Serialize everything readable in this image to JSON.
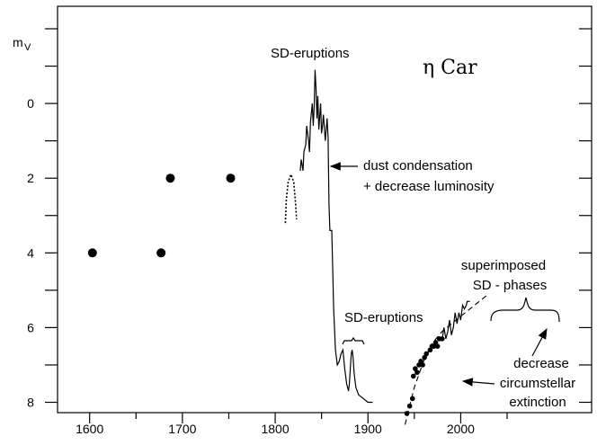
{
  "chart_data": {
    "type": "line",
    "title": "η Car",
    "ylabel_main": "m",
    "ylabel_sub": "V",
    "xlabel": "",
    "xlim": [
      1550,
      2050
    ],
    "ylim": [
      8.5,
      -2.5
    ],
    "y_inverted": true,
    "grid": false,
    "x_ticks": [
      1600,
      1700,
      1800,
      1900,
      2000
    ],
    "y_ticks": [
      0,
      2,
      4,
      6,
      8
    ],
    "points_historic": [
      {
        "x": 1603,
        "y": 4.0
      },
      {
        "x": 1677,
        "y": 4.0
      },
      {
        "x": 1687,
        "y": 2.0
      },
      {
        "x": 1752,
        "y": 2.0
      }
    ],
    "points_modern": [
      {
        "x": 1942,
        "y": 8.3
      },
      {
        "x": 1945,
        "y": 8.1
      },
      {
        "x": 1948,
        "y": 7.9
      },
      {
        "x": 1949,
        "y": 7.3
      },
      {
        "x": 1951,
        "y": 7.1
      },
      {
        "x": 1953,
        "y": 7.2
      },
      {
        "x": 1955,
        "y": 7.0
      },
      {
        "x": 1957,
        "y": 6.9
      },
      {
        "x": 1959,
        "y": 7.0
      },
      {
        "x": 1961,
        "y": 6.8
      },
      {
        "x": 1963,
        "y": 6.7
      },
      {
        "x": 1967,
        "y": 6.6
      },
      {
        "x": 1969,
        "y": 6.5
      },
      {
        "x": 1971,
        "y": 6.5
      },
      {
        "x": 1973,
        "y": 6.4
      },
      {
        "x": 1975,
        "y": 6.5
      },
      {
        "x": 1977,
        "y": 6.3
      },
      {
        "x": 1980,
        "y": 6.3
      }
    ],
    "dotted_arc": [
      {
        "x": 1811,
        "y": 3.2
      },
      {
        "x": 1812,
        "y": 2.6
      },
      {
        "x": 1814,
        "y": 2.1
      },
      {
        "x": 1817,
        "y": 1.9
      },
      {
        "x": 1820,
        "y": 2.1
      },
      {
        "x": 1822,
        "y": 2.7
      },
      {
        "x": 1823,
        "y": 3.1
      }
    ],
    "light_curve": [
      {
        "x": 1827,
        "y": 1.8
      },
      {
        "x": 1828,
        "y": 1.5
      },
      {
        "x": 1830,
        "y": 1.8
      },
      {
        "x": 1831,
        "y": 1.3
      },
      {
        "x": 1833,
        "y": 1.1
      },
      {
        "x": 1834,
        "y": 0.6
      },
      {
        "x": 1836,
        "y": 1.0
      },
      {
        "x": 1837,
        "y": 1.3
      },
      {
        "x": 1838,
        "y": 0.5
      },
      {
        "x": 1840,
        "y": 0.0
      },
      {
        "x": 1841,
        "y": 0.6
      },
      {
        "x": 1842,
        "y": 0.1
      },
      {
        "x": 1843,
        "y": -0.9
      },
      {
        "x": 1844,
        "y": -0.4
      },
      {
        "x": 1845,
        "y": 0.4
      },
      {
        "x": 1846,
        "y": -0.2
      },
      {
        "x": 1847,
        "y": 0.7
      },
      {
        "x": 1849,
        "y": 0.0
      },
      {
        "x": 1850,
        "y": 0.8
      },
      {
        "x": 1851,
        "y": 0.6
      },
      {
        "x": 1852,
        "y": 0.3
      },
      {
        "x": 1854,
        "y": 1.0
      },
      {
        "x": 1856,
        "y": 0.4
      },
      {
        "x": 1857,
        "y": 0.9
      },
      {
        "x": 1858,
        "y": 2.7
      },
      {
        "x": 1859,
        "y": 3.4
      },
      {
        "x": 1861,
        "y": 3.4
      },
      {
        "x": 1863,
        "y": 5.5
      },
      {
        "x": 1865,
        "y": 6.6
      },
      {
        "x": 1867,
        "y": 7.0
      },
      {
        "x": 1869,
        "y": 6.9
      },
      {
        "x": 1871,
        "y": 6.7
      },
      {
        "x": 1873,
        "y": 6.6
      },
      {
        "x": 1875,
        "y": 7.1
      },
      {
        "x": 1877,
        "y": 7.5
      },
      {
        "x": 1879,
        "y": 7.7
      },
      {
        "x": 1880,
        "y": 7.5
      },
      {
        "x": 1881,
        "y": 7.1
      },
      {
        "x": 1882,
        "y": 6.7
      },
      {
        "x": 1883,
        "y": 6.6
      },
      {
        "x": 1884,
        "y": 6.8
      },
      {
        "x": 1885,
        "y": 7.2
      },
      {
        "x": 1887,
        "y": 7.6
      },
      {
        "x": 1890,
        "y": 7.8
      },
      {
        "x": 1895,
        "y": 7.9
      },
      {
        "x": 1900,
        "y": 8.0
      },
      {
        "x": 1905,
        "y": 8.0
      }
    ],
    "modern_curve": [
      {
        "x": 1980,
        "y": 6.3
      },
      {
        "x": 1982,
        "y": 6.0
      },
      {
        "x": 1984,
        "y": 6.3
      },
      {
        "x": 1986,
        "y": 6.1
      },
      {
        "x": 1988,
        "y": 5.8
      },
      {
        "x": 1990,
        "y": 6.2
      },
      {
        "x": 1992,
        "y": 6.0
      },
      {
        "x": 1994,
        "y": 5.6
      },
      {
        "x": 1996,
        "y": 5.9
      },
      {
        "x": 1998,
        "y": 5.6
      },
      {
        "x": 2000,
        "y": 5.8
      },
      {
        "x": 2002,
        "y": 5.4
      },
      {
        "x": 2004,
        "y": 5.5
      },
      {
        "x": 2006,
        "y": 5.4
      },
      {
        "x": 2007,
        "y": 5.3
      },
      {
        "x": 2010,
        "y": 5.3
      }
    ],
    "trend_curve": [
      {
        "x": 1940,
        "y": 8.6
      },
      {
        "x": 1950,
        "y": 7.6
      },
      {
        "x": 1960,
        "y": 6.9
      },
      {
        "x": 1970,
        "y": 6.4
      },
      {
        "x": 1980,
        "y": 6.1
      },
      {
        "x": 1990,
        "y": 5.9
      },
      {
        "x": 2000,
        "y": 5.7
      },
      {
        "x": 2010,
        "y": 5.5
      },
      {
        "x": 2020,
        "y": 5.3
      },
      {
        "x": 2030,
        "y": 5.1
      }
    ],
    "annotations": {
      "sd_top": "SD-eruptions",
      "dust_line1": "dust condensation",
      "dust_line2": "+ decrease luminosity",
      "sd_mid": "SD-eruptions",
      "super_line1": "superimposed",
      "super_line2": "SD - phases",
      "circ_line1": "decrease",
      "circ_line2": "circumstellar",
      "circ_line3": "extinction"
    }
  }
}
